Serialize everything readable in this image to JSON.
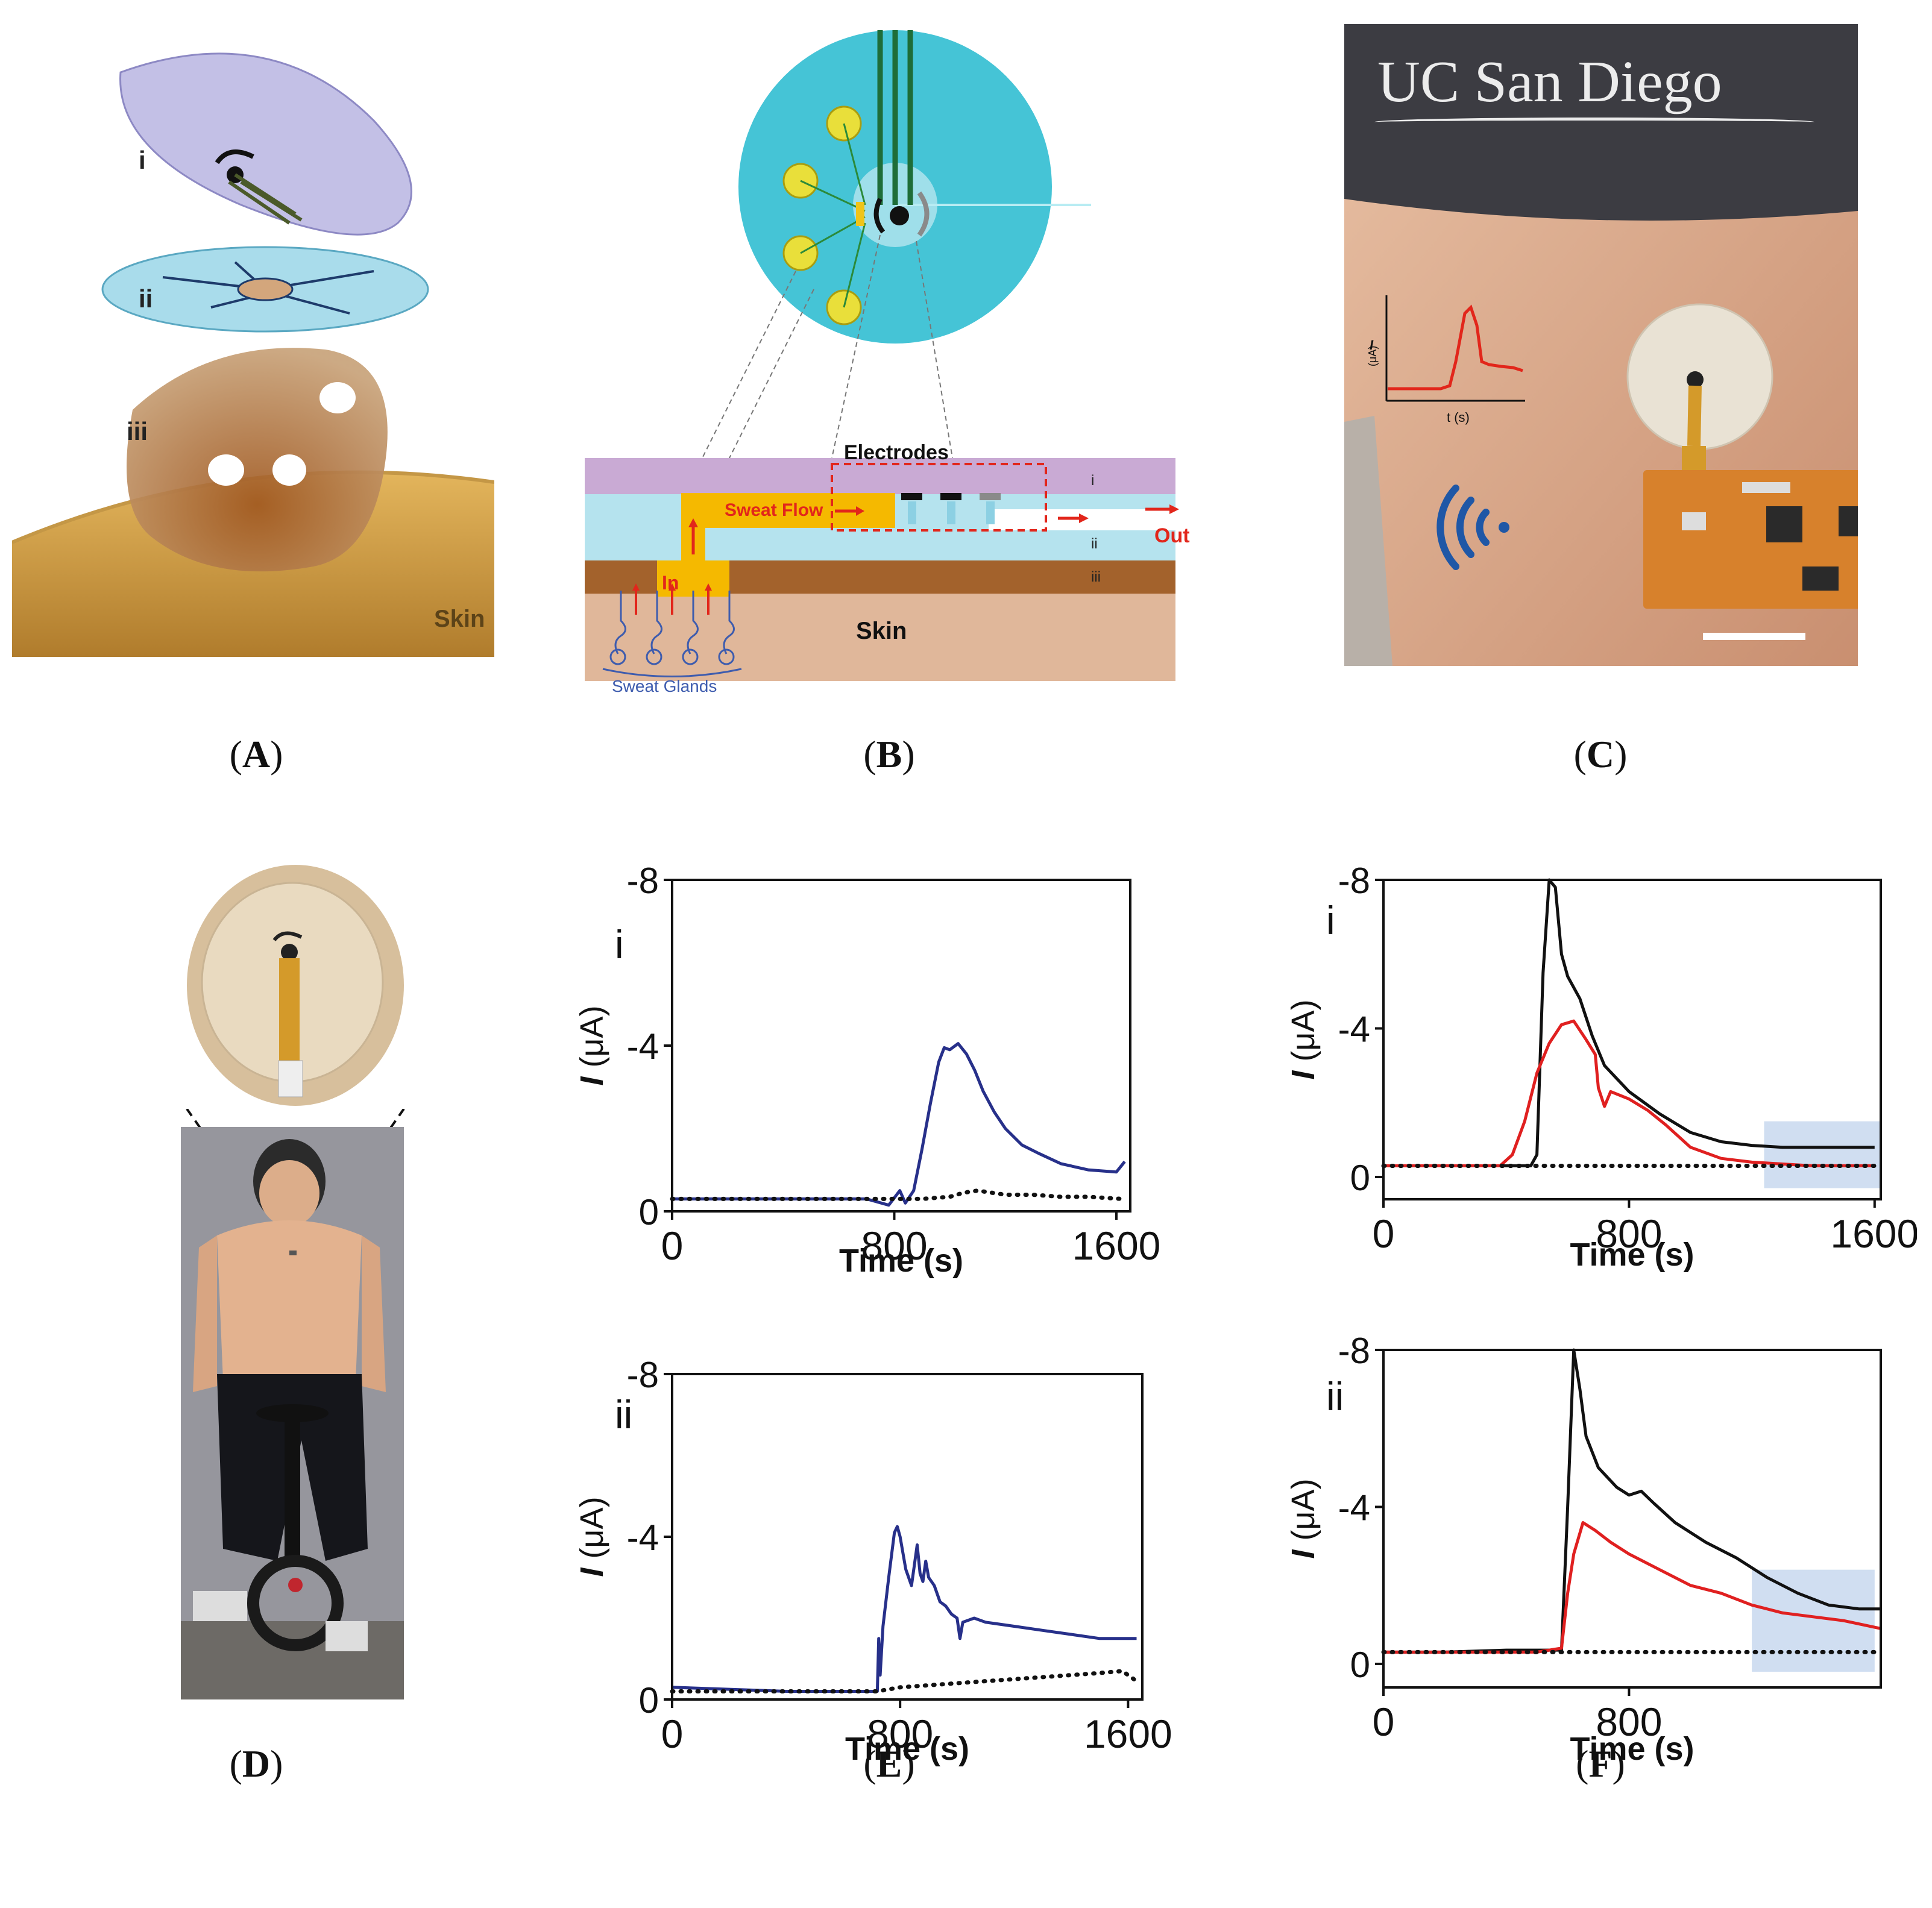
{
  "panels": {
    "A": {
      "label": "A",
      "layers": [
        "i",
        "ii",
        "iii"
      ],
      "skin": "Skin"
    },
    "B": {
      "label": "B",
      "electrodes": "Electrodes",
      "sweat_flow": "Sweat Flow",
      "in": "In",
      "out": "Out",
      "skin": "Skin",
      "sweat_glands": "Sweat Glands",
      "layers": [
        "i",
        "ii",
        "iii"
      ]
    },
    "C": {
      "label": "C",
      "logo": "UC San Diego",
      "inset_ylabel": "I",
      "inset_yunit": "(μA)",
      "inset_xlabel": "t (s)"
    },
    "D": {
      "label": "D"
    },
    "E": {
      "label": "E"
    },
    "F": {
      "label": "F"
    }
  },
  "chart_data": [
    {
      "id": "E-i",
      "type": "line",
      "panel_tag": "i",
      "xlabel": "Time (s)",
      "ylabel": "I",
      "yunit": "(μA)",
      "xlim": [
        0,
        1650
      ],
      "ylim": [
        0,
        -8
      ],
      "xticks": [
        "0",
        "800",
        "1600"
      ],
      "xtick_values": [
        0,
        800,
        1600
      ],
      "yticks": [
        "-8",
        "-4",
        "0"
      ],
      "ytick_values": [
        -8,
        -4,
        0
      ],
      "series": [
        {
          "color": "#27308a",
          "style": "solid",
          "x": [
            0,
            200,
            400,
            600,
            700,
            780,
            820,
            840,
            870,
            900,
            930,
            960,
            980,
            1000,
            1030,
            1060,
            1090,
            1120,
            1160,
            1200,
            1260,
            1320,
            1400,
            1500,
            1600,
            1630
          ],
          "y": [
            -0.3,
            -0.3,
            -0.3,
            -0.3,
            -0.3,
            -0.15,
            -0.5,
            -0.2,
            -0.5,
            -1.5,
            -2.6,
            -3.6,
            -3.95,
            -3.9,
            -4.05,
            -3.8,
            -3.4,
            -2.9,
            -2.4,
            -2.0,
            -1.6,
            -1.4,
            -1.15,
            -1.0,
            -0.95,
            -1.2
          ]
        },
        {
          "color": "#111111",
          "style": "dotted",
          "x": [
            0,
            400,
            800,
            900,
            1000,
            1050,
            1100,
            1200,
            1300,
            1400,
            1500,
            1620
          ],
          "y": [
            -0.3,
            -0.3,
            -0.3,
            -0.3,
            -0.35,
            -0.45,
            -0.5,
            -0.4,
            -0.4,
            -0.35,
            -0.35,
            -0.3
          ]
        }
      ]
    },
    {
      "id": "E-ii",
      "type": "line",
      "panel_tag": "ii",
      "xlabel": "Time (s)",
      "ylabel": "I",
      "yunit": "(μA)",
      "xlim": [
        0,
        1650
      ],
      "ylim": [
        0,
        -8
      ],
      "xticks": [
        "0",
        "800",
        "1600"
      ],
      "xtick_values": [
        0,
        800,
        1600
      ],
      "yticks": [
        "-8",
        "-4",
        "0"
      ],
      "ytick_values": [
        -8,
        -4,
        0
      ],
      "series": [
        {
          "color": "#27308a",
          "style": "solid",
          "x": [
            0,
            200,
            400,
            600,
            720,
            725,
            730,
            740,
            760,
            780,
            790,
            800,
            820,
            840,
            850,
            860,
            870,
            880,
            890,
            900,
            920,
            940,
            960,
            980,
            1000,
            1010,
            1020,
            1060,
            1100,
            1200,
            1300,
            1400,
            1500,
            1600,
            1630
          ],
          "y": [
            -0.3,
            -0.25,
            -0.2,
            -0.2,
            -0.2,
            -1.5,
            -0.6,
            -1.8,
            -3.0,
            -4.1,
            -4.25,
            -4.0,
            -3.2,
            -2.8,
            -3.3,
            -3.8,
            -3.1,
            -2.9,
            -3.4,
            -3.0,
            -2.8,
            -2.4,
            -2.3,
            -2.1,
            -2.0,
            -1.5,
            -1.9,
            -2.0,
            -1.9,
            -1.8,
            -1.7,
            -1.6,
            -1.5,
            -1.5,
            -1.5
          ]
        },
        {
          "color": "#111111",
          "style": "dotted",
          "x": [
            0,
            720,
            800,
            900,
            1000,
            1100,
            1200,
            1300,
            1400,
            1500,
            1580,
            1630
          ],
          "y": [
            -0.2,
            -0.2,
            -0.3,
            -0.35,
            -0.4,
            -0.45,
            -0.5,
            -0.55,
            -0.6,
            -0.65,
            -0.7,
            -0.45
          ]
        }
      ]
    },
    {
      "id": "F-i",
      "type": "line",
      "panel_tag": "i",
      "xlabel": "Time (s)",
      "ylabel": "I",
      "yunit": "(μA)",
      "xlim": [
        0,
        1620
      ],
      "ylim": [
        0.6,
        -8
      ],
      "xticks": [
        "0",
        "800",
        "1600"
      ],
      "xtick_values": [
        0,
        800,
        1600
      ],
      "yticks": [
        "-8",
        "-4",
        "0"
      ],
      "ytick_values": [
        -8,
        -4,
        0
      ],
      "highlight": {
        "x": [
          1240,
          1620
        ],
        "y": [
          -1.5,
          0.3
        ],
        "color": "#a9c2e6"
      },
      "series": [
        {
          "color": "#111111",
          "style": "solid",
          "x": [
            0,
            200,
            400,
            480,
            500,
            520,
            540,
            560,
            580,
            600,
            640,
            680,
            720,
            800,
            900,
            1000,
            1100,
            1200,
            1300,
            1400,
            1500,
            1600
          ],
          "y": [
            -0.3,
            -0.3,
            -0.3,
            -0.3,
            -0.6,
            -5.5,
            -8.0,
            -7.8,
            -6.0,
            -5.4,
            -4.8,
            -3.8,
            -3.0,
            -2.3,
            -1.7,
            -1.2,
            -0.95,
            -0.85,
            -0.8,
            -0.8,
            -0.8,
            -0.8
          ]
        },
        {
          "color": "#e02020",
          "style": "solid",
          "x": [
            0,
            200,
            380,
            420,
            460,
            500,
            540,
            580,
            620,
            660,
            690,
            700,
            720,
            740,
            800,
            860,
            920,
            1000,
            1100,
            1200,
            1300,
            1400,
            1600
          ],
          "y": [
            -0.3,
            -0.3,
            -0.3,
            -0.6,
            -1.5,
            -2.8,
            -3.6,
            -4.1,
            -4.2,
            -3.7,
            -3.3,
            -2.4,
            -1.9,
            -2.3,
            -2.1,
            -1.8,
            -1.4,
            -0.8,
            -0.5,
            -0.4,
            -0.35,
            -0.3,
            -0.3
          ]
        },
        {
          "color": "#111111",
          "style": "dotted",
          "x": [
            0,
            400,
            800,
            1200,
            1600
          ],
          "y": [
            -0.3,
            -0.3,
            -0.3,
            -0.3,
            -0.3
          ]
        }
      ]
    },
    {
      "id": "F-ii",
      "type": "line",
      "panel_tag": "ii",
      "xlabel": "Time (s)",
      "ylabel": "I",
      "yunit": "(μA)",
      "xlim": [
        0,
        1620
      ],
      "ylim": [
        0.6,
        -8
      ],
      "xticks": [
        "0",
        "800"
      ],
      "xtick_values": [
        0,
        800
      ],
      "yticks": [
        "-8",
        "-4",
        "0"
      ],
      "ytick_values": [
        -8,
        -4,
        0
      ],
      "highlight": {
        "x": [
          1200,
          1600
        ],
        "y": [
          -2.4,
          0.2
        ],
        "color": "#a9c2e6"
      },
      "series": [
        {
          "color": "#111111",
          "style": "solid",
          "x": [
            0,
            200,
            400,
            580,
            600,
            620,
            640,
            660,
            700,
            760,
            800,
            840,
            880,
            950,
            1050,
            1150,
            1250,
            1350,
            1450,
            1550,
            1620
          ],
          "y": [
            -0.3,
            -0.3,
            -0.35,
            -0.35,
            -4.0,
            -8.0,
            -7.0,
            -5.8,
            -5.0,
            -4.5,
            -4.3,
            -4.4,
            -4.1,
            -3.6,
            -3.1,
            -2.7,
            -2.2,
            -1.8,
            -1.5,
            -1.4,
            -1.4
          ]
        },
        {
          "color": "#e02020",
          "style": "solid",
          "x": [
            0,
            500,
            580,
            600,
            620,
            650,
            690,
            740,
            800,
            900,
            1000,
            1100,
            1200,
            1300,
            1400,
            1500,
            1620
          ],
          "y": [
            -0.3,
            -0.3,
            -0.4,
            -1.8,
            -2.8,
            -3.6,
            -3.4,
            -3.1,
            -2.8,
            -2.4,
            -2.0,
            -1.8,
            -1.5,
            -1.3,
            -1.2,
            -1.1,
            -0.9
          ]
        },
        {
          "color": "#111111",
          "style": "dotted",
          "x": [
            0,
            400,
            800,
            1200,
            1620
          ],
          "y": [
            -0.3,
            -0.3,
            -0.3,
            -0.3,
            -0.3
          ]
        }
      ]
    }
  ]
}
